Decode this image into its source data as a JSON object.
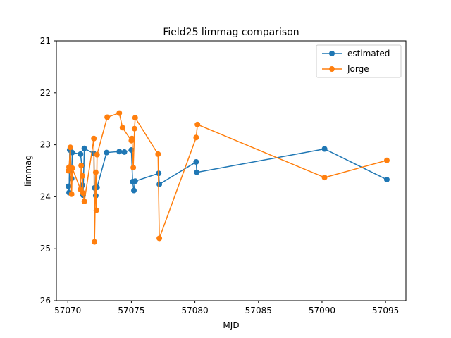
{
  "chart_data": {
    "type": "line",
    "title": "Field25 limmag comparison",
    "xlabel": "MJD",
    "ylabel": "limmag",
    "xlim": [
      57069.1,
      57096.6
    ],
    "ylim": [
      26,
      21
    ],
    "y_inverted": true,
    "xticks": [
      57070,
      57075,
      57080,
      57085,
      57090,
      57095
    ],
    "yticks": [
      21,
      22,
      23,
      24,
      25,
      26
    ],
    "grid": false,
    "legend_position": "top-right",
    "series": [
      {
        "name": "estimated",
        "color": "#1f77b4",
        "marker": "circle",
        "x": [
          57070.05,
          57070.1,
          57070.15,
          57070.3,
          57070.35,
          57071.0,
          57071.1,
          57071.15,
          57071.2,
          57071.3,
          57072.05,
          57072.1,
          57072.2,
          57072.3,
          57073.05,
          57074.05,
          57074.45,
          57075.0,
          57075.1,
          57075.2,
          57075.3,
          57077.15,
          57077.2,
          57080.1,
          57080.15,
          57090.2,
          57095.1
        ],
        "y": [
          23.8,
          23.92,
          23.1,
          23.65,
          23.15,
          23.18,
          23.4,
          23.78,
          23.97,
          23.07,
          23.17,
          23.83,
          23.98,
          23.82,
          23.15,
          23.13,
          23.14,
          23.1,
          23.71,
          23.88,
          23.7,
          23.55,
          23.76,
          23.33,
          23.53,
          23.08,
          23.67
        ]
      },
      {
        "name": "Jorge",
        "color": "#ff7f0e",
        "marker": "circle",
        "x": [
          57070.05,
          57070.1,
          57070.2,
          57070.3,
          57070.35,
          57071.0,
          57071.05,
          57071.15,
          57071.2,
          57071.3,
          57072.05,
          57072.1,
          57072.2,
          57072.25,
          57072.3,
          57073.1,
          57074.05,
          57074.3,
          57075.0,
          57075.05,
          57075.15,
          57075.25,
          57075.3,
          57077.1,
          57077.2,
          57080.1,
          57080.2,
          57090.2,
          57095.1
        ],
        "y": [
          23.5,
          23.43,
          23.05,
          23.95,
          23.45,
          23.86,
          23.4,
          23.6,
          23.93,
          24.09,
          22.88,
          24.87,
          23.53,
          24.26,
          23.19,
          22.47,
          22.39,
          22.67,
          22.92,
          22.88,
          23.44,
          22.69,
          22.48,
          23.18,
          24.8,
          22.86,
          22.61,
          23.63,
          23.3
        ]
      }
    ]
  }
}
